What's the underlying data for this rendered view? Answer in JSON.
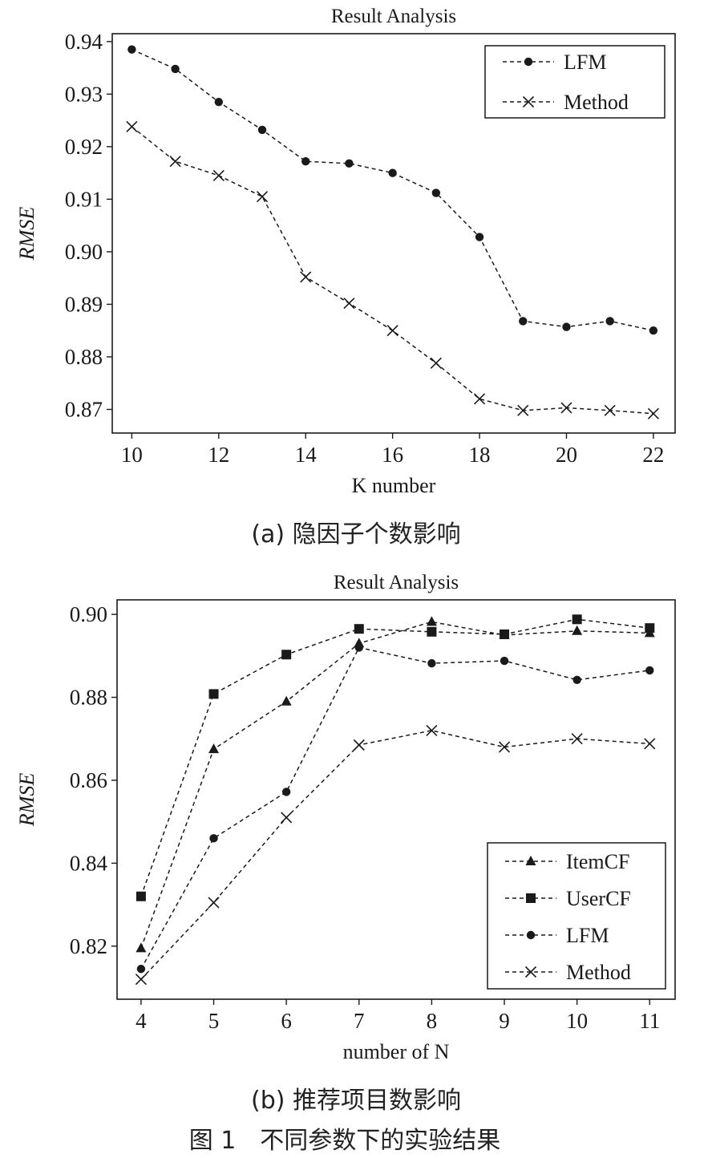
{
  "figure_caption": "图 1　不同参数下的实验结果",
  "chart_data": [
    {
      "type": "line",
      "title": "Result Analysis",
      "xlabel": "K number",
      "ylabel": "RMSE",
      "caption": "(a) 隐因子个数影响",
      "x": [
        10,
        11,
        12,
        13,
        14,
        15,
        16,
        17,
        18,
        19,
        20,
        21,
        22
      ],
      "xticks": [
        10,
        12,
        14,
        16,
        18,
        20,
        22
      ],
      "yticks": [
        0.87,
        0.88,
        0.89,
        0.9,
        0.91,
        0.92,
        0.93,
        0.94
      ],
      "xlim": [
        9.55,
        22.5
      ],
      "ylim": [
        0.8655,
        0.9415
      ],
      "legend": "top-right",
      "series": [
        {
          "name": "LFM",
          "marker": "circle",
          "values": [
            0.9385,
            0.9348,
            0.9285,
            0.9232,
            0.9172,
            0.9168,
            0.915,
            0.9112,
            0.9028,
            0.8868,
            0.8857,
            0.8868,
            0.885
          ]
        },
        {
          "name": "Method",
          "marker": "x",
          "values": [
            0.9238,
            0.9172,
            0.9145,
            0.9105,
            0.8952,
            0.8902,
            0.885,
            0.8788,
            0.872,
            0.8698,
            0.8703,
            0.8698,
            0.8692
          ]
        }
      ]
    },
    {
      "type": "line",
      "title": "Result Analysis",
      "xlabel": "number of N",
      "ylabel": "RMSE",
      "caption": "(b) 推荐项目数影响",
      "x": [
        4,
        5,
        6,
        7,
        8,
        9,
        10,
        11
      ],
      "xticks": [
        4,
        5,
        6,
        7,
        8,
        9,
        10,
        11
      ],
      "yticks": [
        0.82,
        0.84,
        0.86,
        0.88,
        0.9
      ],
      "xlim": [
        3.67,
        11.35
      ],
      "ylim": [
        0.8072,
        0.9035
      ],
      "legend": "bottom-right",
      "series": [
        {
          "name": "ItemCF",
          "marker": "triangle",
          "values": [
            0.8195,
            0.8675,
            0.879,
            0.893,
            0.8982,
            0.895,
            0.896,
            0.8955
          ]
        },
        {
          "name": "UserCF",
          "marker": "square",
          "values": [
            0.832,
            0.8808,
            0.8903,
            0.8965,
            0.8958,
            0.8952,
            0.8988,
            0.8967
          ]
        },
        {
          "name": "LFM",
          "marker": "circle",
          "values": [
            0.8145,
            0.846,
            0.8572,
            0.892,
            0.8882,
            0.8888,
            0.8842,
            0.8865
          ]
        },
        {
          "name": "Method",
          "marker": "x",
          "values": [
            0.812,
            0.8305,
            0.851,
            0.8685,
            0.872,
            0.868,
            0.87,
            0.8688
          ]
        }
      ]
    }
  ]
}
